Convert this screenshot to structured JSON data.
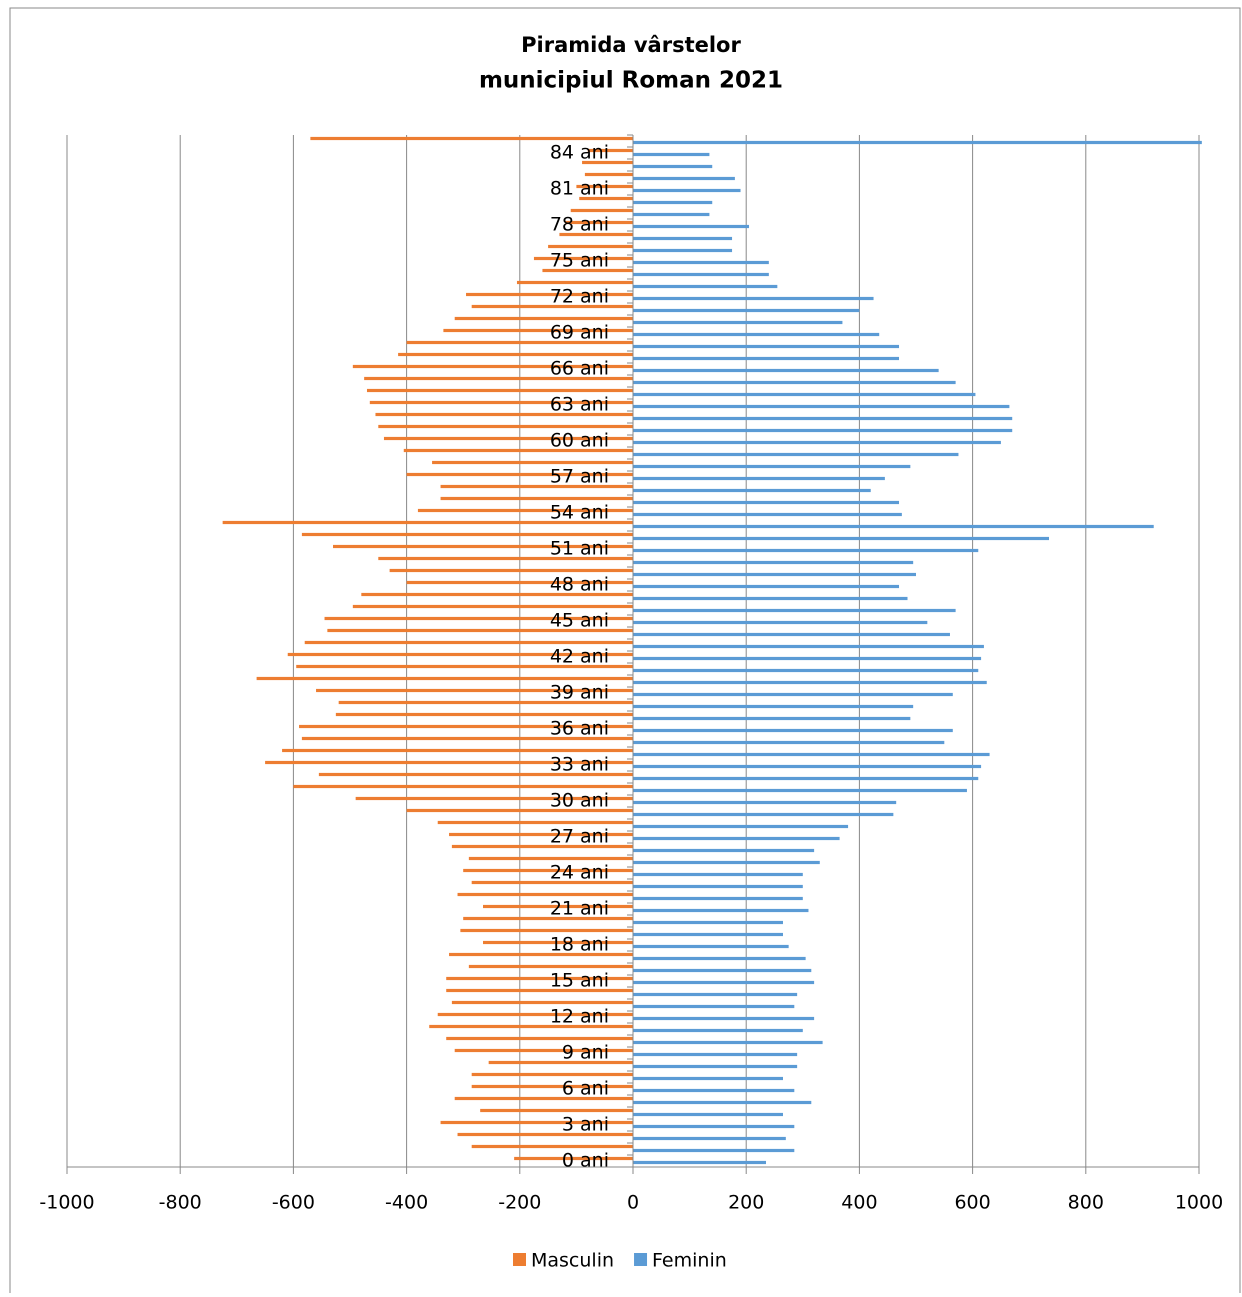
{
  "chart_data": {
    "type": "pyramid",
    "title": "Piramida vârstelor",
    "subtitle": "municipiul Roman 2021",
    "categories": [
      "0 ani",
      null,
      null,
      "3 ani",
      null,
      null,
      "6 ani",
      null,
      null,
      "9 ani",
      null,
      null,
      "12 ani",
      null,
      null,
      "15 ani",
      null,
      null,
      "18 ani",
      null,
      null,
      "21 ani",
      null,
      null,
      "24 ani",
      null,
      null,
      "27 ani",
      null,
      null,
      "30 ani",
      null,
      null,
      "33 ani",
      null,
      null,
      "36 ani",
      null,
      null,
      "39 ani",
      null,
      null,
      "42 ani",
      null,
      null,
      "45 ani",
      null,
      null,
      "48 ani",
      null,
      null,
      "51 ani",
      null,
      null,
      "54 ani",
      null,
      null,
      "57 ani",
      null,
      null,
      "60 ani",
      null,
      null,
      "63 ani",
      null,
      null,
      "66 ani",
      null,
      null,
      "69 ani",
      null,
      null,
      "72 ani",
      null,
      null,
      "75 ani",
      null,
      null,
      "78 ani",
      null,
      null,
      "81 ani",
      null,
      null,
      "84 ani",
      null
    ],
    "series": [
      {
        "name": "Masculin",
        "color": "#ed7d31",
        "values": [
          -210,
          -285,
          -310,
          -340,
          -270,
          -315,
          -285,
          -285,
          -255,
          -315,
          -330,
          -360,
          -345,
          -320,
          -330,
          -330,
          -290,
          -325,
          -265,
          -305,
          -300,
          -265,
          -310,
          -285,
          -300,
          -290,
          -320,
          -325,
          -345,
          -400,
          -490,
          -600,
          -555,
          -650,
          -620,
          -585,
          -590,
          -525,
          -520,
          -560,
          -665,
          -595,
          -610,
          -580,
          -540,
          -545,
          -495,
          -480,
          -400,
          -430,
          -450,
          -530,
          -585,
          -725,
          -380,
          -340,
          -340,
          -400,
          -355,
          -405,
          -440,
          -450,
          -455,
          -465,
          -470,
          -475,
          -495,
          -415,
          -400,
          -335,
          -315,
          -285,
          -295,
          -205,
          -160,
          -175,
          -150,
          -130,
          -120,
          -110,
          -95,
          -100,
          -85,
          -90,
          -80,
          -570
        ]
      },
      {
        "name": "Feminin",
        "color": "#5b9bd5",
        "values": [
          235,
          285,
          270,
          285,
          265,
          315,
          285,
          265,
          290,
          290,
          335,
          300,
          320,
          285,
          290,
          320,
          315,
          305,
          275,
          265,
          265,
          310,
          300,
          300,
          300,
          330,
          320,
          365,
          380,
          460,
          465,
          590,
          610,
          615,
          630,
          550,
          565,
          490,
          495,
          565,
          625,
          610,
          615,
          620,
          560,
          520,
          570,
          485,
          470,
          500,
          495,
          610,
          735,
          920,
          475,
          470,
          420,
          445,
          490,
          575,
          650,
          670,
          670,
          665,
          605,
          570,
          540,
          470,
          470,
          435,
          370,
          400,
          425,
          255,
          240,
          240,
          175,
          175,
          205,
          135,
          140,
          190,
          180,
          140,
          135,
          1005
        ]
      }
    ],
    "xlim": [
      -1000,
      1000
    ],
    "xticks": [
      -1000,
      -800,
      -600,
      -400,
      -200,
      0,
      200,
      400,
      600,
      800,
      1000
    ],
    "grid": true,
    "legend": "bottom"
  }
}
